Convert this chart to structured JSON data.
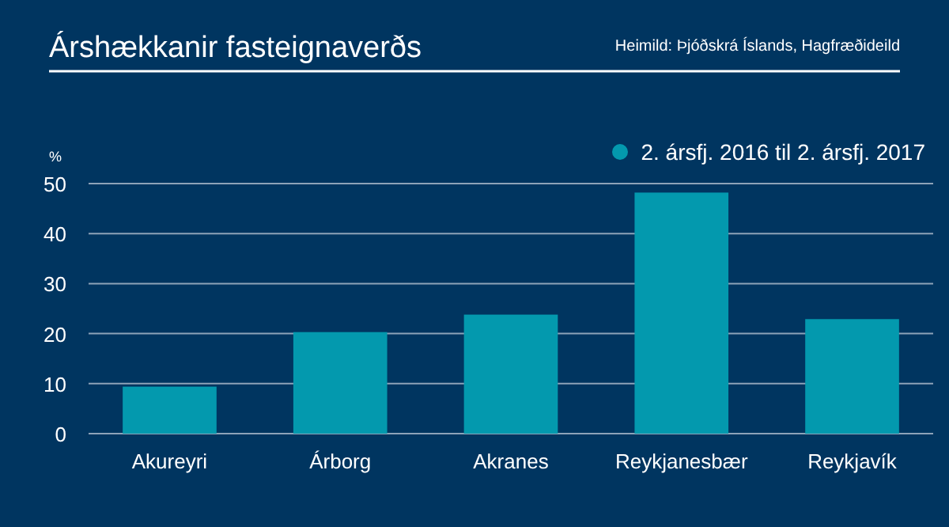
{
  "chart_data": {
    "type": "bar",
    "title": "Árshækkanir fasteignaverðs",
    "ylabel": "%",
    "annotations": [
      "Heimild: Þjóðskrá Íslands, Hagfræðideild"
    ],
    "categories": [
      "Akureyri",
      "Árborg",
      "Akranes",
      "Reykjanesbær",
      "Reykjavík"
    ],
    "series": [
      {
        "name": "2. ársfj. 2016 til 2. ársfj. 2017",
        "color": "#0399ae",
        "values": [
          9.4,
          20.3,
          23.8,
          48.2,
          22.9
        ]
      }
    ],
    "ylim": [
      0,
      50
    ],
    "yticks": [
      0,
      10,
      20,
      30,
      40,
      50
    ],
    "grid": "y",
    "legend": "top right"
  }
}
